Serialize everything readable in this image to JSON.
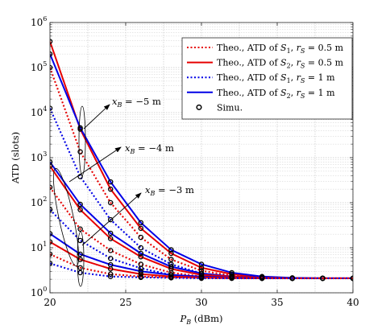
{
  "chart_data": {
    "type": "line",
    "xlabel": "P_B (dBm)",
    "xlabel_main": "P",
    "xlabel_sub": "B",
    "xlabel_unit": " (dBm)",
    "ylabel": "ATD (slots)",
    "xlim": [
      20,
      40
    ],
    "ylim": [
      1,
      1000000
    ],
    "yscale": "log",
    "grid": true,
    "legend_position": "top-right",
    "x_ticks": [
      20,
      25,
      30,
      35,
      40
    ],
    "y_ticks": [
      {
        "value": 1,
        "mantissa": "10",
        "exp": "0"
      },
      {
        "value": 10,
        "mantissa": "10",
        "exp": "1"
      },
      {
        "value": 100,
        "mantissa": "10",
        "exp": "2"
      },
      {
        "value": 1000,
        "mantissa": "10",
        "exp": "3"
      },
      {
        "value": 10000,
        "mantissa": "10",
        "exp": "4"
      },
      {
        "value": 100000,
        "mantissa": "10",
        "exp": "5"
      },
      {
        "value": 1000000,
        "mantissa": "10",
        "exp": "6"
      }
    ],
    "legend": [
      {
        "label": "Theo., ATD of S1, rS = 0.5 m",
        "color": "#e60000",
        "style": "dotted",
        "marker": false
      },
      {
        "label": "Theo., ATD of S2, rS = 0.5 m",
        "color": "#e60000",
        "style": "solid",
        "marker": false
      },
      {
        "label": "Theo., ATD of S1, rS = 1 m",
        "color": "#0000e6",
        "style": "dotted",
        "marker": false
      },
      {
        "label": "Theo., ATD of S2, rS = 1 m",
        "color": "#0000e6",
        "style": "solid",
        "marker": false
      },
      {
        "label": "Simu.",
        "color": "#000000",
        "style": "none",
        "marker": true
      }
    ],
    "annotations": [
      {
        "text": "x_B = −5 m",
        "main": "x",
        "sub": "B",
        "rest": " = −5 m"
      },
      {
        "text": "x_B = −4 m",
        "main": "x",
        "sub": "B",
        "rest": " = −4 m"
      },
      {
        "text": "x_B = −3 m",
        "main": "x",
        "sub": "B",
        "rest": " = −3 m"
      }
    ],
    "x": [
      20,
      22,
      24,
      26,
      28,
      30,
      32,
      34,
      36,
      38,
      40
    ],
    "series": [
      {
        "legend": 1,
        "group": "x_B = -5 m",
        "color": "#e60000",
        "style": "solid",
        "values": [
          380000,
          4300,
          200,
          27,
          7.5,
          3.6,
          2.6,
          2.2,
          2.1,
          2.1,
          2.1
        ]
      },
      {
        "legend": 3,
        "group": "x_B = -5 m",
        "color": "#0000e6",
        "style": "solid",
        "values": [
          200000,
          4600,
          290,
          36,
          9,
          4.3,
          2.8,
          2.3,
          2.15,
          2.1,
          2.1
        ]
      },
      {
        "legend": 0,
        "group": "x_B = -5 m",
        "color": "#e60000",
        "style": "dotted",
        "values": [
          100000,
          1350,
          100,
          17,
          5.5,
          3.1,
          2.4,
          2.2,
          2.1,
          2.1,
          2.1
        ]
      },
      {
        "legend": 2,
        "group": "x_B = -5 m",
        "color": "#0000e6",
        "style": "dotted",
        "values": [
          12500,
          380,
          42,
          10,
          4.3,
          2.7,
          2.3,
          2.15,
          2.1,
          2.1,
          2.1
        ]
      },
      {
        "legend": 3,
        "group": "x_B = -4 m",
        "color": "#0000e6",
        "style": "solid",
        "values": [
          800,
          92,
          21,
          7.5,
          3.8,
          2.7,
          2.3,
          2.2,
          2.1,
          2.1,
          2.1
        ]
      },
      {
        "legend": 1,
        "group": "x_B = -4 m",
        "color": "#e60000",
        "style": "solid",
        "values": [
          650,
          70,
          16,
          6.3,
          3.4,
          2.5,
          2.3,
          2.15,
          2.1,
          2.1,
          2.1
        ]
      },
      {
        "legend": 0,
        "group": "x_B = -4 m",
        "color": "#e60000",
        "style": "dotted",
        "values": [
          220,
          26,
          8.7,
          4.3,
          2.8,
          2.3,
          2.2,
          2.1,
          2.1,
          2.1,
          2.1
        ]
      },
      {
        "legend": 2,
        "group": "x_B = -4 m",
        "color": "#0000e6",
        "style": "dotted",
        "values": [
          70,
          14.5,
          5.8,
          3.5,
          2.5,
          2.2,
          2.15,
          2.1,
          2.1,
          2.1,
          2.1
        ]
      },
      {
        "legend": 3,
        "group": "x_B = -3 m",
        "color": "#0000e6",
        "style": "solid",
        "values": [
          20.5,
          7.2,
          4.2,
          3,
          2.5,
          2.3,
          2.2,
          2.1,
          2.1,
          2.1,
          2.1
        ]
      },
      {
        "legend": 1,
        "group": "x_B = -3 m",
        "color": "#e60000",
        "style": "solid",
        "values": [
          13.5,
          5.5,
          3.4,
          2.6,
          2.3,
          2.2,
          2.15,
          2.1,
          2.1,
          2.1,
          2.1
        ]
      },
      {
        "legend": 0,
        "group": "x_B = -3 m",
        "color": "#e60000",
        "style": "dotted",
        "values": [
          7.2,
          3.6,
          2.6,
          2.3,
          2.2,
          2.15,
          2.1,
          2.1,
          2.1,
          2.1,
          2.1
        ]
      },
      {
        "legend": 2,
        "group": "x_B = -3 m",
        "color": "#0000e6",
        "style": "dotted",
        "values": [
          4.5,
          2.8,
          2.3,
          2.2,
          2.15,
          2.1,
          2.1,
          2.1,
          2.1,
          2.1,
          2.1
        ]
      }
    ]
  }
}
